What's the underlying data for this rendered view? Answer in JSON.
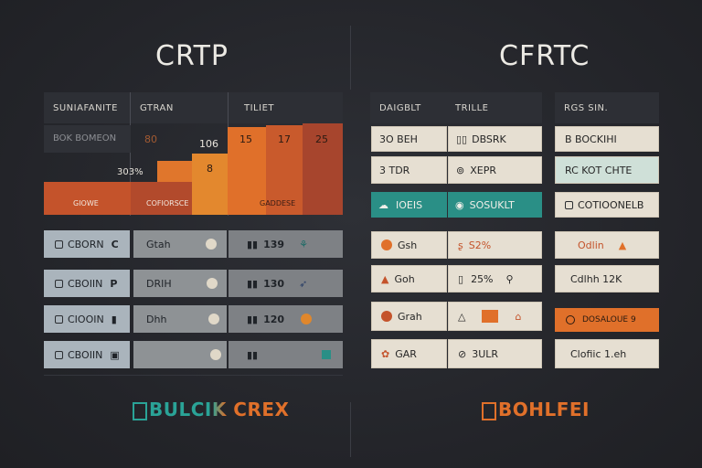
{
  "left": {
    "title": "CRTP",
    "headers": [
      "SUNIAFANITE",
      "GTRAN",
      "TILIET"
    ],
    "chart": {
      "row_text": "BOK BOMEON",
      "base_label_1": "GIOWE",
      "base_label_2": "COFIORSCE",
      "base_label_3": "GADDESE",
      "annotation_1": "80",
      "annotation_2": "106",
      "annotation_3": "8",
      "annotation_4": "303%",
      "bar_labels": [
        "15",
        "17",
        "25"
      ]
    },
    "rows": [
      {
        "c1": "CBORN",
        "c1b": "C",
        "c2": "Gtah",
        "c3": "139"
      },
      {
        "c1": "CBOIIN",
        "c1b": "P",
        "c2": "DRIH",
        "c3": "130"
      },
      {
        "c1": "CIOOIN",
        "c1b": "",
        "c2": "Dhh",
        "c3": "120"
      },
      {
        "c1": "CBOIIN",
        "c1b": "",
        "c2": "",
        "c3": ""
      }
    ],
    "footer": "BULCIK CREX"
  },
  "right": {
    "title": "CFRTC",
    "headers": [
      "DAIGBLT",
      "TRILLE",
      "RGS SIN."
    ],
    "rows": [
      {
        "c1": "3O BEH",
        "c2": "DBSRK",
        "c3": "B BOCKIHI"
      },
      {
        "c1": "3 TDR",
        "c2": "XEPR",
        "c3": "RC KOT CHTE"
      },
      {
        "c1": "IOEIS",
        "c2": "SOSUKLT",
        "c3": "COTIOONELB"
      },
      {
        "c1": "Gsh",
        "c2": "S2%",
        "c3": "Odlin"
      },
      {
        "c1": "Goh",
        "c2": "25%",
        "c3": "Cdlhh 12K"
      },
      {
        "c1": "Grah",
        "c2": "",
        "c3": "DOSALOUE 9"
      },
      {
        "c1": "GAR",
        "c2": "3ULR",
        "c3": "Clofiic 1.eh"
      }
    ],
    "footer": "BOHLFEI"
  },
  "colors": {
    "orange": "#e0702a",
    "red_orange": "#c4532b",
    "dark_red": "#a7452d",
    "teal": "#2a8f86",
    "steel": "#aab4bc"
  }
}
